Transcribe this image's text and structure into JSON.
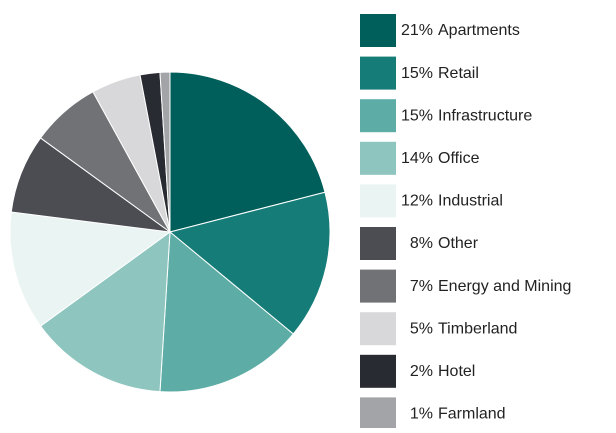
{
  "chart_data": {
    "type": "pie",
    "categories": [
      "Apartments",
      "Retail",
      "Infrastructure",
      "Office",
      "Industrial",
      "Other",
      "Energy and Mining",
      "Timberland",
      "Hotel",
      "Farmland"
    ],
    "values": [
      21,
      15,
      15,
      14,
      12,
      8,
      7,
      5,
      2,
      1
    ],
    "value_labels": [
      "21%",
      "15%",
      "15%",
      "14%",
      "12%",
      "8%",
      "7%",
      "5%",
      "2%",
      "1%"
    ],
    "colors": [
      "#005f5b",
      "#157c77",
      "#5dada6",
      "#8ec5bf",
      "#eaf4f2",
      "#4b4d53",
      "#707276",
      "#d8d8da",
      "#292b32",
      "#a3a4a7"
    ]
  }
}
